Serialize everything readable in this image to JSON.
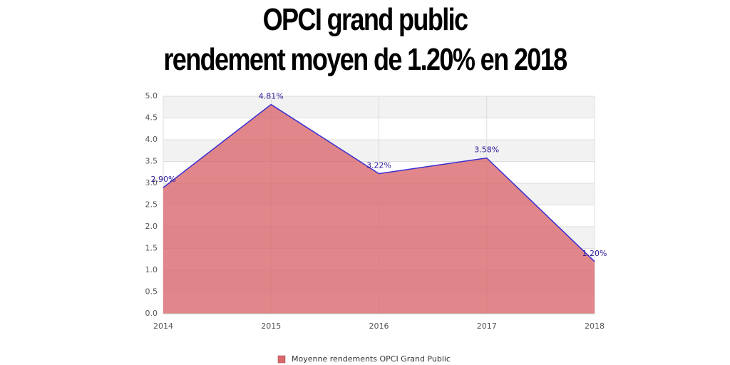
{
  "chart_data": {
    "type": "area",
    "title": "OPCI grand public",
    "subtitle": "rendement moyen de 1.20% en 2018",
    "x": [
      2014,
      2015,
      2016,
      2017,
      2018
    ],
    "xlim": [
      2014,
      2018
    ],
    "xticks": [
      2014,
      2015,
      2016,
      2017,
      2018
    ],
    "ylim": [
      0,
      5
    ],
    "yticks": [
      {
        "value": 0,
        "label": "0.0"
      },
      0.5,
      {
        "value": 1,
        "label": "1.0"
      },
      1.5,
      {
        "value": 2,
        "label": "2.0"
      },
      2.5,
      {
        "value": 3,
        "label": "3.0"
      },
      3.5,
      {
        "value": 4,
        "label": "4.0"
      },
      4.5,
      {
        "value": 5,
        "label": "5.0"
      }
    ],
    "grid": true,
    "legend": "bottom",
    "series": [
      {
        "name": "Moyenne rendements OPCI Grand Public",
        "color": "#d9686d",
        "line_color": "#3a2fd0",
        "values": [
          2.9,
          4.81,
          3.22,
          3.58,
          1.2
        ],
        "value_labels": [
          "2.90%",
          "4.81%",
          "3.22%",
          "3.58%",
          "1.20%"
        ]
      }
    ]
  }
}
